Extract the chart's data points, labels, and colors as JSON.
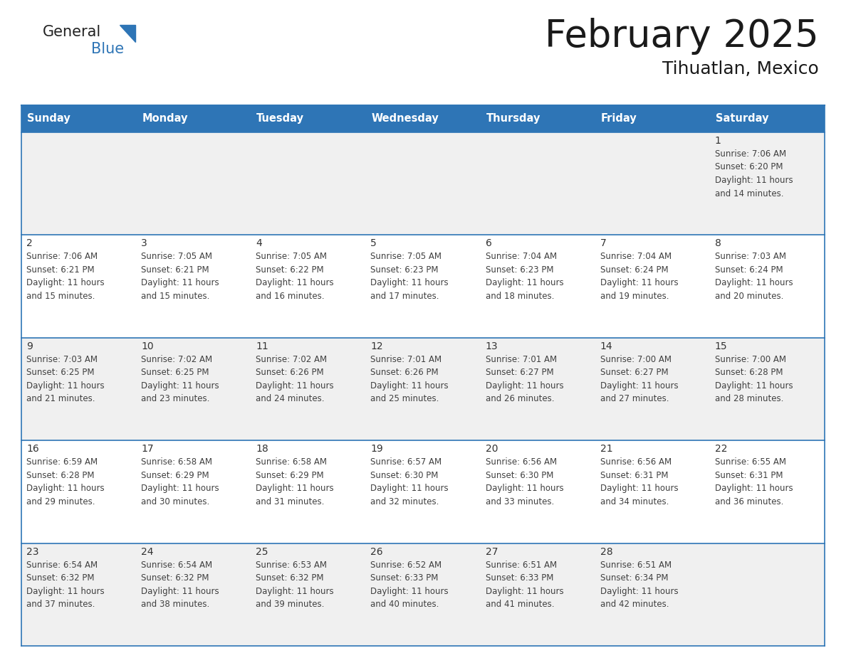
{
  "title": "February 2025",
  "subtitle": "Tihuatlan, Mexico",
  "days_of_week": [
    "Sunday",
    "Monday",
    "Tuesday",
    "Wednesday",
    "Thursday",
    "Friday",
    "Saturday"
  ],
  "header_bg": "#2E75B6",
  "header_text": "#FFFFFF",
  "cell_bg_light": "#F0F0F0",
  "cell_bg_white": "#FFFFFF",
  "border_color": "#2E75B6",
  "day_number_color": "#333333",
  "text_color": "#404040",
  "title_color": "#1a1a1a",
  "calendar_data": [
    [
      null,
      null,
      null,
      null,
      null,
      null,
      1
    ],
    [
      2,
      3,
      4,
      5,
      6,
      7,
      8
    ],
    [
      9,
      10,
      11,
      12,
      13,
      14,
      15
    ],
    [
      16,
      17,
      18,
      19,
      20,
      21,
      22
    ],
    [
      23,
      24,
      25,
      26,
      27,
      28,
      null
    ]
  ],
  "row_bg": [
    "#F0F0F0",
    "#FFFFFF",
    "#F0F0F0",
    "#FFFFFF",
    "#F0F0F0"
  ],
  "cell_info": {
    "1": {
      "sunrise": "7:06 AM",
      "sunset": "6:20 PM",
      "daylight_hours": 11,
      "daylight_minutes": 14
    },
    "2": {
      "sunrise": "7:06 AM",
      "sunset": "6:21 PM",
      "daylight_hours": 11,
      "daylight_minutes": 15
    },
    "3": {
      "sunrise": "7:05 AM",
      "sunset": "6:21 PM",
      "daylight_hours": 11,
      "daylight_minutes": 15
    },
    "4": {
      "sunrise": "7:05 AM",
      "sunset": "6:22 PM",
      "daylight_hours": 11,
      "daylight_minutes": 16
    },
    "5": {
      "sunrise": "7:05 AM",
      "sunset": "6:23 PM",
      "daylight_hours": 11,
      "daylight_minutes": 17
    },
    "6": {
      "sunrise": "7:04 AM",
      "sunset": "6:23 PM",
      "daylight_hours": 11,
      "daylight_minutes": 18
    },
    "7": {
      "sunrise": "7:04 AM",
      "sunset": "6:24 PM",
      "daylight_hours": 11,
      "daylight_minutes": 19
    },
    "8": {
      "sunrise": "7:03 AM",
      "sunset": "6:24 PM",
      "daylight_hours": 11,
      "daylight_minutes": 20
    },
    "9": {
      "sunrise": "7:03 AM",
      "sunset": "6:25 PM",
      "daylight_hours": 11,
      "daylight_minutes": 21
    },
    "10": {
      "sunrise": "7:02 AM",
      "sunset": "6:25 PM",
      "daylight_hours": 11,
      "daylight_minutes": 23
    },
    "11": {
      "sunrise": "7:02 AM",
      "sunset": "6:26 PM",
      "daylight_hours": 11,
      "daylight_minutes": 24
    },
    "12": {
      "sunrise": "7:01 AM",
      "sunset": "6:26 PM",
      "daylight_hours": 11,
      "daylight_minutes": 25
    },
    "13": {
      "sunrise": "7:01 AM",
      "sunset": "6:27 PM",
      "daylight_hours": 11,
      "daylight_minutes": 26
    },
    "14": {
      "sunrise": "7:00 AM",
      "sunset": "6:27 PM",
      "daylight_hours": 11,
      "daylight_minutes": 27
    },
    "15": {
      "sunrise": "7:00 AM",
      "sunset": "6:28 PM",
      "daylight_hours": 11,
      "daylight_minutes": 28
    },
    "16": {
      "sunrise": "6:59 AM",
      "sunset": "6:28 PM",
      "daylight_hours": 11,
      "daylight_minutes": 29
    },
    "17": {
      "sunrise": "6:58 AM",
      "sunset": "6:29 PM",
      "daylight_hours": 11,
      "daylight_minutes": 30
    },
    "18": {
      "sunrise": "6:58 AM",
      "sunset": "6:29 PM",
      "daylight_hours": 11,
      "daylight_minutes": 31
    },
    "19": {
      "sunrise": "6:57 AM",
      "sunset": "6:30 PM",
      "daylight_hours": 11,
      "daylight_minutes": 32
    },
    "20": {
      "sunrise": "6:56 AM",
      "sunset": "6:30 PM",
      "daylight_hours": 11,
      "daylight_minutes": 33
    },
    "21": {
      "sunrise": "6:56 AM",
      "sunset": "6:31 PM",
      "daylight_hours": 11,
      "daylight_minutes": 34
    },
    "22": {
      "sunrise": "6:55 AM",
      "sunset": "6:31 PM",
      "daylight_hours": 11,
      "daylight_minutes": 36
    },
    "23": {
      "sunrise": "6:54 AM",
      "sunset": "6:32 PM",
      "daylight_hours": 11,
      "daylight_minutes": 37
    },
    "24": {
      "sunrise": "6:54 AM",
      "sunset": "6:32 PM",
      "daylight_hours": 11,
      "daylight_minutes": 38
    },
    "25": {
      "sunrise": "6:53 AM",
      "sunset": "6:32 PM",
      "daylight_hours": 11,
      "daylight_minutes": 39
    },
    "26": {
      "sunrise": "6:52 AM",
      "sunset": "6:33 PM",
      "daylight_hours": 11,
      "daylight_minutes": 40
    },
    "27": {
      "sunrise": "6:51 AM",
      "sunset": "6:33 PM",
      "daylight_hours": 11,
      "daylight_minutes": 41
    },
    "28": {
      "sunrise": "6:51 AM",
      "sunset": "6:34 PM",
      "daylight_hours": 11,
      "daylight_minutes": 42
    }
  },
  "logo_text_general": "General",
  "logo_text_blue": "Blue",
  "logo_color_general": "#222222",
  "logo_color_blue": "#2E75B6",
  "logo_triangle_color": "#2E75B6"
}
